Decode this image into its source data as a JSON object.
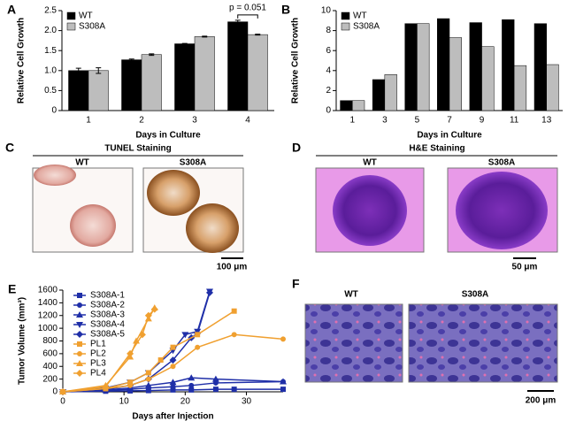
{
  "chart_data": [
    {
      "type": "bar",
      "panel": "A",
      "xlabel": "Days in Culture",
      "ylabel": "Relative Cell Growth",
      "categories": [
        "1",
        "2",
        "3",
        "4"
      ],
      "series": [
        {
          "name": "WT",
          "color": "#000000",
          "values": [
            1.0,
            1.27,
            1.67,
            2.22
          ],
          "errors": [
            0.06,
            0.02,
            0.01,
            0.04
          ]
        },
        {
          "name": "S308A",
          "color": "#bdbdbd",
          "values": [
            1.0,
            1.4,
            1.85,
            1.9
          ],
          "errors": [
            0.07,
            0.02,
            0.01,
            0.01
          ]
        }
      ],
      "ylim": [
        0,
        2.5
      ],
      "yticks": [
        0,
        0.5,
        {
          "value": 1,
          "label": "1.0"
        },
        1.5,
        {
          "value": 2,
          "label": "2.0"
        },
        2.5
      ],
      "legend": "upper left",
      "annotation": "p = 0.051"
    },
    {
      "type": "bar",
      "panel": "B",
      "xlabel": "Days in Culture",
      "ylabel": "Relative Cell Growth",
      "categories": [
        "1",
        "3",
        "5",
        "7",
        "9",
        "11",
        "13"
      ],
      "series": [
        {
          "name": "WT",
          "color": "#000000",
          "values": [
            1.0,
            3.1,
            8.7,
            9.2,
            8.8,
            9.1,
            8.7
          ]
        },
        {
          "name": "S308A",
          "color": "#bdbdbd",
          "values": [
            1.0,
            3.6,
            8.7,
            7.3,
            6.4,
            4.5,
            4.6
          ]
        }
      ],
      "ylim": [
        0,
        10
      ],
      "yticks": [
        0,
        2,
        4,
        6,
        8,
        10
      ],
      "legend": "upper left"
    },
    {
      "type": "line",
      "panel": "E",
      "xlabel": "Days after Injection",
      "ylabel": "Tumor Volume (mm³)",
      "series": [
        {
          "name": "S308A-1",
          "color": "#1f2fa8",
          "marker": "square",
          "x": [
            0,
            7,
            11,
            14,
            18,
            21,
            25,
            28,
            36
          ],
          "values": [
            0,
            10,
            15,
            20,
            30,
            30,
            40,
            40,
            40
          ]
        },
        {
          "name": "S308A-2",
          "color": "#1f2fa8",
          "marker": "circle",
          "x": [
            0,
            7,
            11,
            14,
            18,
            21,
            25,
            36
          ],
          "values": [
            0,
            20,
            40,
            60,
            80,
            100,
            140,
            160
          ]
        },
        {
          "name": "S308A-3",
          "color": "#1f2fa8",
          "marker": "triangle",
          "x": [
            0,
            7,
            11,
            14,
            18,
            21,
            25,
            36
          ],
          "values": [
            0,
            30,
            60,
            100,
            150,
            220,
            200,
            160
          ]
        },
        {
          "name": "S308A-4",
          "color": "#1f2fa8",
          "marker": "triangle-down",
          "x": [
            0,
            7,
            11,
            14,
            18,
            20,
            22,
            24
          ],
          "values": [
            0,
            60,
            150,
            300,
            650,
            900,
            950,
            1580
          ]
        },
        {
          "name": "S308A-5",
          "color": "#1f2fa8",
          "marker": "diamond",
          "x": [
            0,
            7,
            11,
            14,
            18,
            21,
            22,
            24
          ],
          "values": [
            0,
            40,
            100,
            200,
            500,
            850,
            920,
            1560
          ]
        },
        {
          "name": "PL1",
          "color": "#f0a030",
          "marker": "square",
          "x": [
            0,
            7,
            11,
            14,
            16,
            18,
            22,
            28
          ],
          "values": [
            0,
            50,
            150,
            300,
            500,
            700,
            900,
            1270
          ]
        },
        {
          "name": "PL2",
          "color": "#f0a030",
          "marker": "circle",
          "x": [
            0,
            7,
            11,
            14,
            18,
            22,
            28,
            36
          ],
          "values": [
            0,
            50,
            100,
            200,
            400,
            700,
            900,
            830
          ]
        },
        {
          "name": "PL3",
          "color": "#f0a030",
          "marker": "triangle",
          "x": [
            0,
            7,
            11,
            12,
            14,
            15
          ],
          "values": [
            0,
            100,
            550,
            800,
            1150,
            1320
          ]
        },
        {
          "name": "PL4",
          "color": "#f0a030",
          "marker": "diamond",
          "x": [
            0,
            7,
            11,
            13,
            14,
            15
          ],
          "values": [
            0,
            80,
            600,
            900,
            1200,
            1300
          ]
        }
      ],
      "xlim": [
        0,
        36
      ],
      "xticks": [
        0,
        10,
        20,
        30
      ],
      "ylim": [
        0,
        1600
      ],
      "yticks": [
        0,
        200,
        400,
        600,
        800,
        1000,
        1200,
        1400,
        1600
      ],
      "legend": "upper left"
    }
  ],
  "image_panels": [
    {
      "panel": "C",
      "title": "TUNEL Staining",
      "labels": [
        "WT",
        "S308A"
      ],
      "scale": "100 μm"
    },
    {
      "panel": "D",
      "title": "H&E Staining",
      "labels": [
        "WT",
        "S308A"
      ],
      "scale": "50 μm"
    },
    {
      "panel": "F",
      "labels": [
        "WT",
        "S308A"
      ],
      "scale": "200 μm"
    }
  ]
}
